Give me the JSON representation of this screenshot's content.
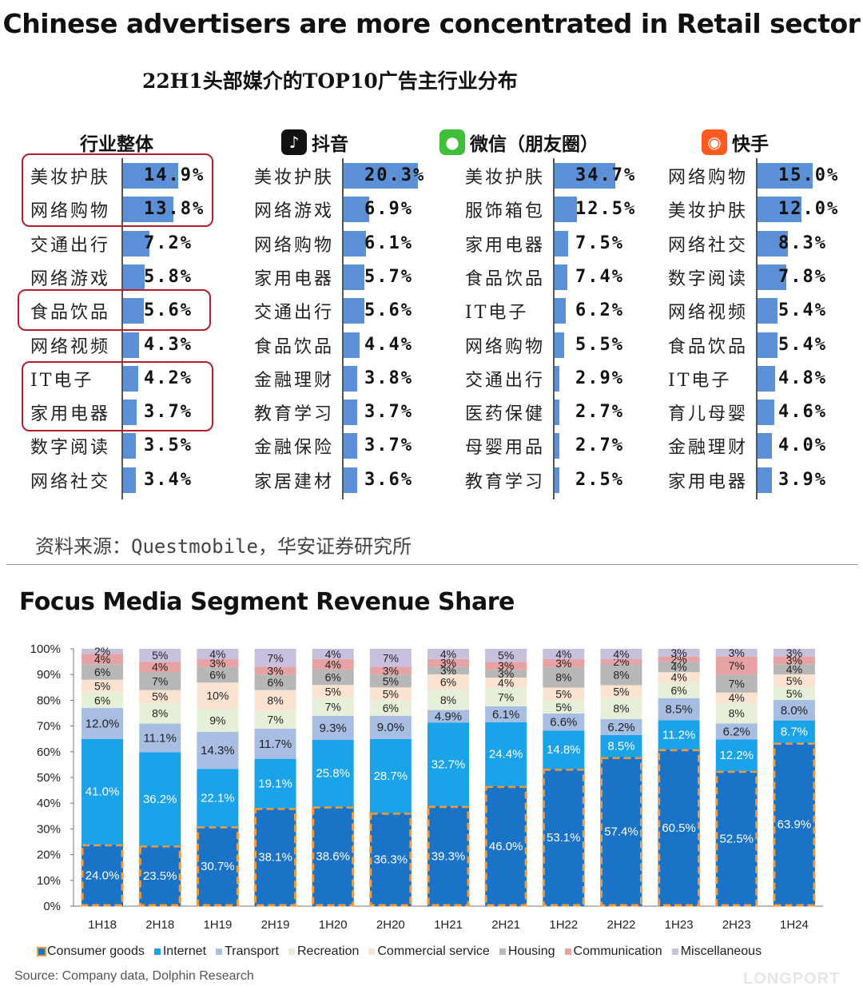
{
  "title": "Chinese advertisers are more concentrated in Retail sector",
  "top_panel": {
    "subtitle": "22H1头部媒介的TOP10广告主行业分布",
    "source": "资料来源：Questmobile，华安证券研究所",
    "platforms": [
      {
        "name": "行业整体",
        "icon": null,
        "icon_color": null,
        "rows": [
          [
            "美妆护肤",
            "14.9%"
          ],
          [
            "网络购物",
            "13.8%"
          ],
          [
            "交通出行",
            "7.2%"
          ],
          [
            "网络游戏",
            "5.8%"
          ],
          [
            "食品饮品",
            "5.6%"
          ],
          [
            "网络视频",
            "4.3%"
          ],
          [
            "IT电子",
            "4.2%"
          ],
          [
            "家用电器",
            "3.7%"
          ],
          [
            "数字阅读",
            "3.5%"
          ],
          [
            "网络社交",
            "3.4%"
          ]
        ],
        "values": [
          14.9,
          13.8,
          7.2,
          5.8,
          5.6,
          4.3,
          4.2,
          3.7,
          3.5,
          3.4
        ]
      },
      {
        "name": "抖音",
        "icon": "tiktok-icon",
        "icon_color": "#111111",
        "rows": [
          [
            "美妆护肤",
            "20.3%"
          ],
          [
            "网络游戏",
            "6.9%"
          ],
          [
            "网络购物",
            "6.1%"
          ],
          [
            "家用电器",
            "5.7%"
          ],
          [
            "交通出行",
            "5.6%"
          ],
          [
            "食品饮品",
            "4.4%"
          ],
          [
            "金融理财",
            "3.8%"
          ],
          [
            "教育学习",
            "3.7%"
          ],
          [
            "金融保险",
            "3.7%"
          ],
          [
            "家居建材",
            "3.6%"
          ]
        ],
        "values": [
          20.3,
          6.9,
          6.1,
          5.7,
          5.6,
          4.4,
          3.8,
          3.7,
          3.7,
          3.6
        ]
      },
      {
        "name": "微信（朋友圈）",
        "icon": "wechat-icon",
        "icon_color": "#3fbf3a",
        "rows": [
          [
            "美妆护肤",
            "34.7%"
          ],
          [
            "服饰箱包",
            "12.5%"
          ],
          [
            "家用电器",
            "7.5%"
          ],
          [
            "食品饮品",
            "7.4%"
          ],
          [
            "IT电子",
            "6.2%"
          ],
          [
            "网络购物",
            "5.5%"
          ],
          [
            "交通出行",
            "2.9%"
          ],
          [
            "医药保健",
            "2.7%"
          ],
          [
            "母婴用品",
            "2.7%"
          ],
          [
            "教育学习",
            "2.5%"
          ]
        ],
        "values": [
          34.7,
          12.5,
          7.5,
          7.4,
          6.2,
          5.5,
          2.9,
          2.7,
          2.7,
          2.5
        ]
      },
      {
        "name": "快手",
        "icon": "kuaishou-icon",
        "icon_color": "#ff5a1f",
        "rows": [
          [
            "网络购物",
            "15.0%"
          ],
          [
            "美妆护肤",
            "12.0%"
          ],
          [
            "网络社交",
            "8.3%"
          ],
          [
            "数字阅读",
            "7.8%"
          ],
          [
            "网络视频",
            "5.4%"
          ],
          [
            "食品饮品",
            "5.4%"
          ],
          [
            "IT电子",
            "4.8%"
          ],
          [
            "育儿母婴",
            "4.6%"
          ],
          [
            "金融理财",
            "4.0%"
          ],
          [
            "家用电器",
            "3.9%"
          ]
        ],
        "values": [
          15.0,
          12.0,
          8.3,
          7.8,
          5.4,
          5.4,
          4.8,
          4.6,
          4.0,
          3.9
        ]
      }
    ],
    "highlight_color": "#b21f2d",
    "bar_color": "#5b8fd6"
  },
  "bottom_chart_title": "Focus Media Segment Revenue Share",
  "chart_data": [
    {
      "type": "bar",
      "stacked": true,
      "title": "Focus Media Segment Revenue Share",
      "categories": [
        "1H18",
        "2H18",
        "1H19",
        "2H19",
        "1H20",
        "2H20",
        "1H21",
        "2H21",
        "1H22",
        "2H22",
        "1H23",
        "2H23",
        "1H24"
      ],
      "ylim": [
        0,
        100
      ],
      "yticks": [
        "0%",
        "10%",
        "20%",
        "30%",
        "40%",
        "50%",
        "60%",
        "70%",
        "80%",
        "90%",
        "100%"
      ],
      "legend_position": "bottom",
      "series": [
        {
          "name": "Consumer goods",
          "color": "#1a73c7",
          "values": [
            24.0,
            23.5,
            30.7,
            38.1,
            38.6,
            36.3,
            39.3,
            46.0,
            53.1,
            57.4,
            60.5,
            52.5,
            63.9
          ],
          "labels": [
            "24.0%",
            "23.5%",
            "30.7%",
            "38.1%",
            "38.6%",
            "36.3%",
            "39.3%",
            "46.0%",
            "53.1%",
            "57.4%",
            "60.5%",
            "52.5%",
            "63.9%"
          ]
        },
        {
          "name": "Internet",
          "color": "#1aa3e8",
          "values": [
            41.0,
            36.2,
            22.1,
            19.1,
            25.8,
            28.7,
            32.7,
            24.4,
            14.8,
            8.5,
            11.2,
            12.2,
            8.7
          ],
          "labels": [
            "41.0%",
            "36.2%",
            "22.1%",
            "19.1%",
            "25.8%",
            "28.7%",
            "32.7%",
            "24.4%",
            "14.8%",
            "8.5%",
            "11.2%",
            "12.2%",
            "8.7%"
          ]
        },
        {
          "name": "Transport",
          "color": "#a7bde2",
          "values": [
            12.0,
            11.1,
            14.3,
            11.7,
            9.3,
            9.0,
            4.9,
            6.1,
            6.6,
            6.2,
            8.5,
            6.2,
            8.0
          ],
          "labels": [
            "12.0%",
            "11.1%",
            "14.3%",
            "11.7%",
            "9.3%",
            "9.0%",
            "4.9%",
            "6.1%",
            "6.6%",
            "6.2%",
            "8.5%",
            "6.2%",
            "8.0%"
          ]
        },
        {
          "name": "Recreation",
          "color": "#e6efd8",
          "values": [
            6,
            8,
            9,
            7,
            7,
            6,
            8,
            7,
            5,
            8,
            6,
            8,
            5
          ],
          "labels": [
            "6%",
            "8%",
            "9%",
            "7%",
            "7%",
            "6%",
            "8%",
            "7%",
            "5%",
            "8%",
            "6%",
            "8%",
            "5%"
          ]
        },
        {
          "name": "Commercial service",
          "color": "#fbe3d2",
          "values": [
            5,
            5,
            10,
            8,
            5,
            5,
            6,
            4,
            5,
            5,
            4,
            4,
            5
          ],
          "labels": [
            "5%",
            "5%",
            "10%",
            "8%",
            "5%",
            "5%",
            "6%",
            "4%",
            "5%",
            "5%",
            "4%",
            "4%",
            "5%"
          ]
        },
        {
          "name": "Housing",
          "color": "#b7b7b7",
          "values": [
            6,
            7,
            6,
            6,
            6,
            5,
            3,
            3,
            8,
            8,
            4,
            7,
            4
          ],
          "labels": [
            "6%",
            "7%",
            "6%",
            "6%",
            "6%",
            "5%",
            "3%",
            "3%",
            "8%",
            "8%",
            "4%",
            "7%",
            "4%"
          ]
        },
        {
          "name": "Communication",
          "color": "#e7a3a3",
          "values": [
            4,
            4,
            3,
            3,
            4,
            3,
            3,
            3,
            3,
            2,
            2,
            7,
            3
          ],
          "labels": [
            "4%",
            "4%",
            "3%",
            "3%",
            "4%",
            "3%",
            "3%",
            "3%",
            "3%",
            "2%",
            "2%",
            "7%",
            "3%"
          ]
        },
        {
          "name": "Miscellaneous",
          "color": "#c9c0de",
          "values": [
            2,
            5,
            4,
            7,
            4,
            7,
            4,
            5,
            4,
            4,
            3,
            3,
            3
          ],
          "labels": [
            "2%",
            "5%",
            "4%",
            "7%",
            "4%",
            "7%",
            "4%",
            "5%",
            "4%",
            "4%",
            "3%",
            "3%",
            "3%"
          ]
        }
      ]
    }
  ],
  "bottom_source": "Source:  Company data, Dolphin Research",
  "watermark_brand": "LONGPORT"
}
